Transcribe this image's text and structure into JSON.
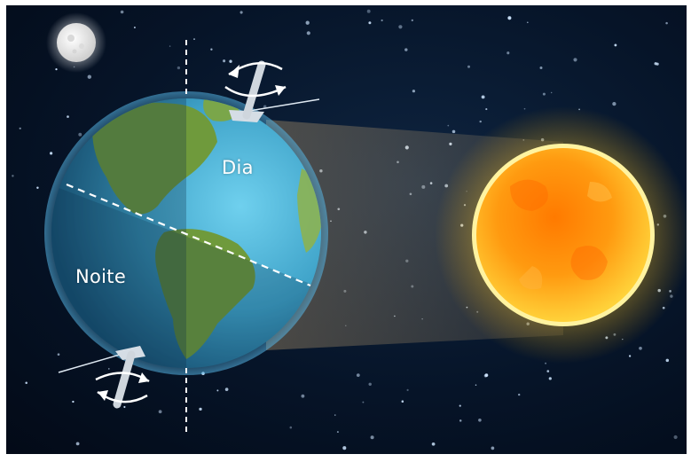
{
  "labels": {
    "day": "Dia",
    "night": "Noite"
  },
  "objects": {
    "moon": "moon",
    "earth": "earth",
    "sun": "sun"
  },
  "colors": {
    "space": "#061428",
    "ocean": "#3fa3c9",
    "land": "#6f9a3c",
    "sun_core": "#ff8a00",
    "sun_glow": "#ffd23c",
    "star": "#cfe6ff"
  }
}
